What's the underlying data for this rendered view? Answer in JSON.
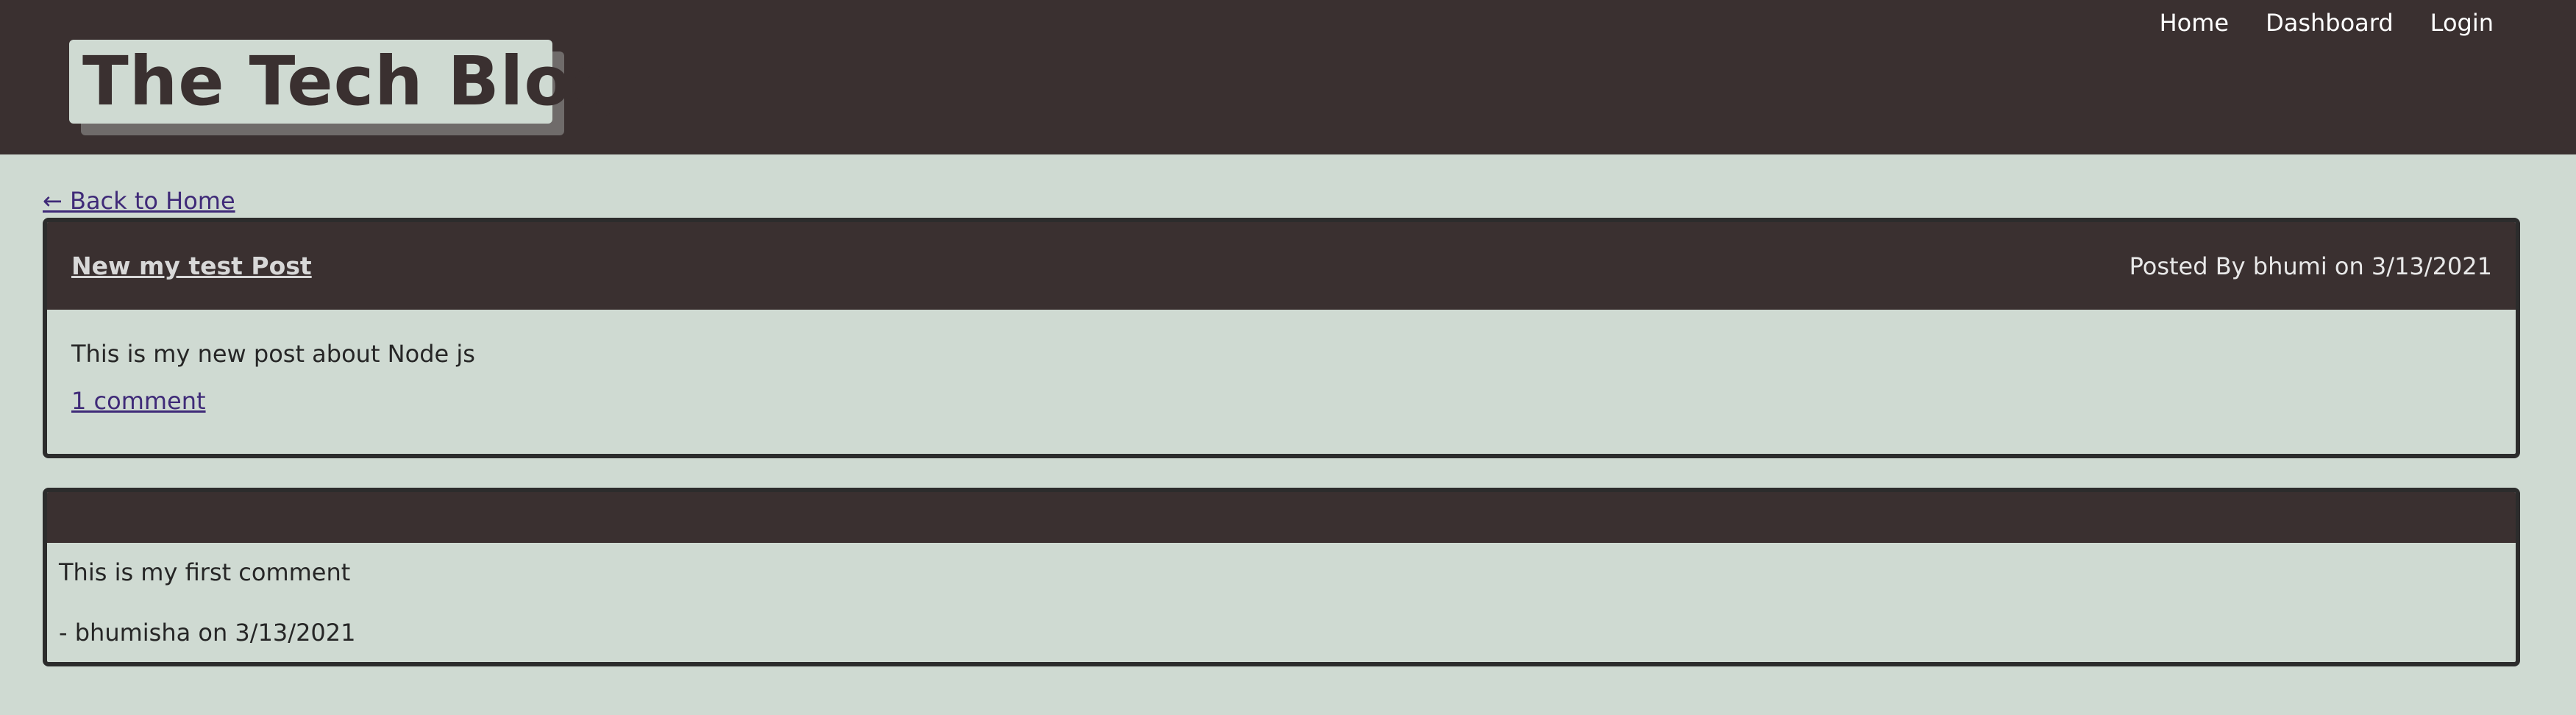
{
  "header": {
    "logo_text": "The Tech Blog",
    "nav": {
      "home": "Home",
      "dashboard": "Dashboard",
      "login": "Login"
    }
  },
  "back_link": "← Back to Home",
  "post": {
    "title": "New my test Post",
    "meta": "Posted By bhumi on 3/13/2021",
    "content": "This is my new post about Node js",
    "comment_count_link": "1 comment"
  },
  "comments": [
    {
      "text": "This is my first comment",
      "meta": "- bhumisha on 3/13/2021"
    }
  ],
  "colors": {
    "header_bg": "#3a3030",
    "page_bg": "#cfdad2",
    "link": "#3f2a78",
    "card_border": "#2c2c2c"
  }
}
